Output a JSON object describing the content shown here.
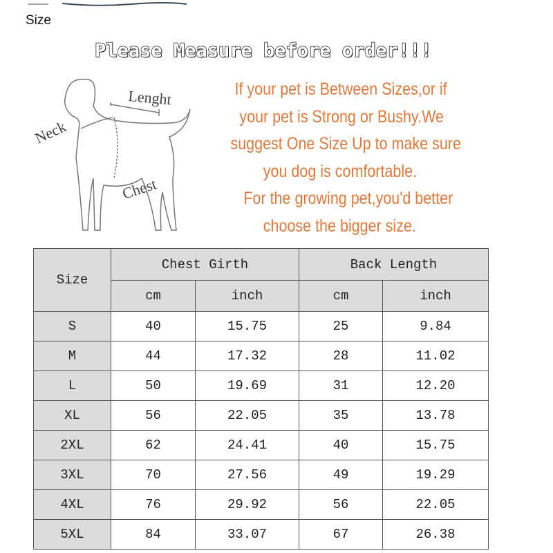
{
  "label": "Size",
  "headline": "Please Measure before order!!!",
  "diagram_labels": {
    "neck": "Neck",
    "length": "Lenght",
    "chest": "Chest"
  },
  "advice": [
    "If your pet is Between Sizes,or if",
    "your pet is Strong or Bushy.We",
    "suggest One Size Up to make sure",
    "you dog is comfortable.",
    " For the growing pet,you'd better",
    "choose the bigger size."
  ],
  "colors": {
    "advice_text": "#e07a3a",
    "header_bg": "#dcdcdc"
  },
  "table": {
    "size_header": "Size",
    "groups": [
      "Chest Girth",
      "Back Length"
    ],
    "units": [
      "cm",
      "inch",
      "cm",
      "inch"
    ],
    "rows": [
      {
        "size": "S",
        "chest_cm": "40",
        "chest_inch": "15.75",
        "back_cm": "25",
        "back_inch": "9.84"
      },
      {
        "size": "M",
        "chest_cm": "44",
        "chest_inch": "17.32",
        "back_cm": "28",
        "back_inch": "11.02"
      },
      {
        "size": "L",
        "chest_cm": "50",
        "chest_inch": "19.69",
        "back_cm": "31",
        "back_inch": "12.20"
      },
      {
        "size": "XL",
        "chest_cm": "56",
        "chest_inch": "22.05",
        "back_cm": "35",
        "back_inch": "13.78"
      },
      {
        "size": "2XL",
        "chest_cm": "62",
        "chest_inch": "24.41",
        "back_cm": "40",
        "back_inch": "15.75"
      },
      {
        "size": "3XL",
        "chest_cm": "70",
        "chest_inch": "27.56",
        "back_cm": "49",
        "back_inch": "19.29"
      },
      {
        "size": "4XL",
        "chest_cm": "76",
        "chest_inch": "29.92",
        "back_cm": "56",
        "back_inch": "22.05"
      },
      {
        "size": "5XL",
        "chest_cm": "84",
        "chest_inch": "33.07",
        "back_cm": "67",
        "back_inch": "26.38"
      }
    ]
  }
}
